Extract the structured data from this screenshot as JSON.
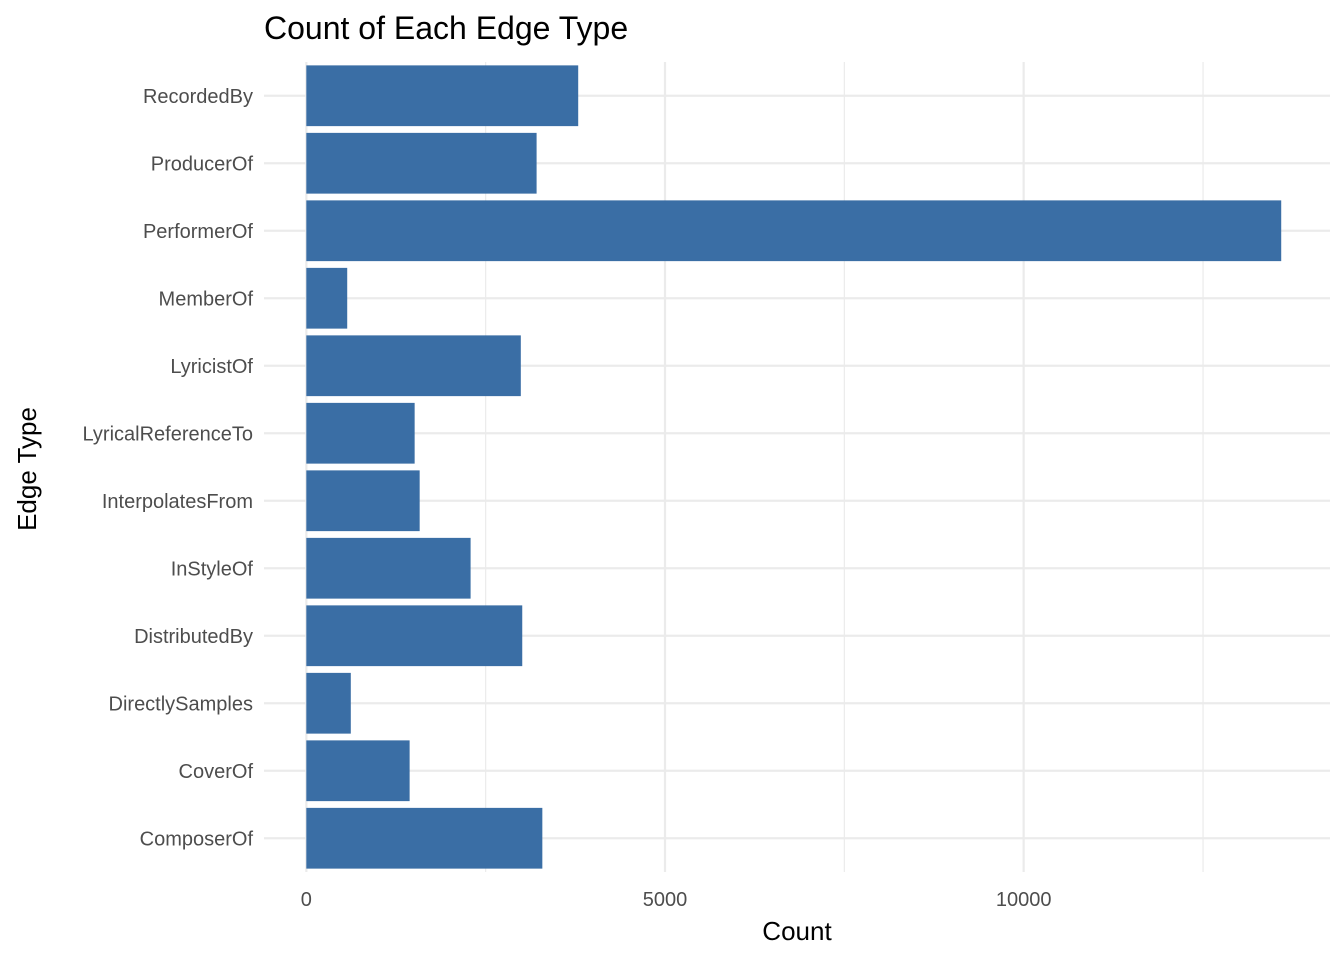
{
  "chart_data": {
    "type": "bar",
    "orientation": "horizontal",
    "title": "Count of Each Edge Type",
    "xlabel": "Count",
    "ylabel": "Edge Type",
    "categories": [
      "RecordedBy",
      "ProducerOf",
      "PerformerOf",
      "MemberOf",
      "LyricistOf",
      "LyricalReferenceTo",
      "InterpolatesFrom",
      "InStyleOf",
      "DistributedBy",
      "DirectlySamples",
      "CoverOf",
      "ComposerOf"
    ],
    "values": [
      3790,
      3210,
      13590,
      570,
      2990,
      1510,
      1580,
      2290,
      3010,
      620,
      1440,
      3290
    ],
    "xlim": [
      -590,
      14270
    ],
    "xticks": [
      0,
      5000,
      10000
    ],
    "xtick_labels": [
      "0",
      "5000",
      "10000"
    ],
    "bar_color": "#3a6ea5",
    "grid": true,
    "legend": "none"
  }
}
